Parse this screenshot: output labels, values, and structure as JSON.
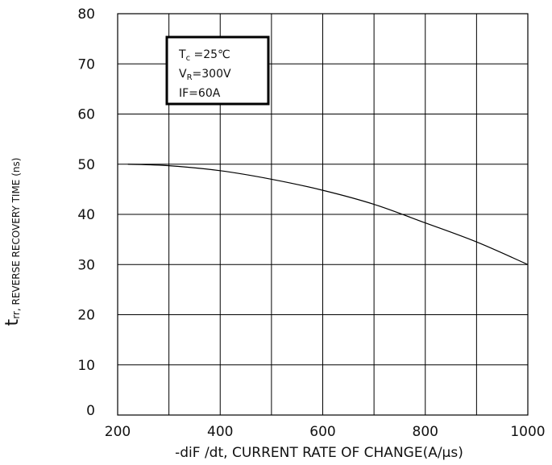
{
  "chart_data": {
    "type": "line",
    "xlabel": "-diF /dt, CURRENT RATE OF CHANGE(A/μs)",
    "ylabel_main": "t",
    "ylabel_sub": "rr, REVERSE RECOVERY TIME (ns)",
    "xlim": [
      200,
      1000
    ],
    "ylim": [
      0,
      80
    ],
    "x_ticks": [
      "200",
      "400",
      "600",
      "800",
      "1000"
    ],
    "y_ticks": [
      "0",
      "10",
      "20",
      "30",
      "40",
      "50",
      "60",
      "70",
      "80"
    ],
    "grid": true,
    "series": [
      {
        "color": "#000000",
        "x": [
          220,
          300,
          400,
          500,
          600,
          700,
          800,
          900,
          1000
        ],
        "y": [
          50,
          49.7,
          48.7,
          47,
          44.8,
          42,
          38.3,
          34.5,
          30
        ]
      }
    ],
    "annotation": {
      "line1": {
        "main": "T",
        "sub": "c",
        "rest": " =25℃"
      },
      "line2": {
        "main": "V",
        "sub": "R",
        "rest": "=300V"
      },
      "line3": "IF=60A"
    }
  }
}
